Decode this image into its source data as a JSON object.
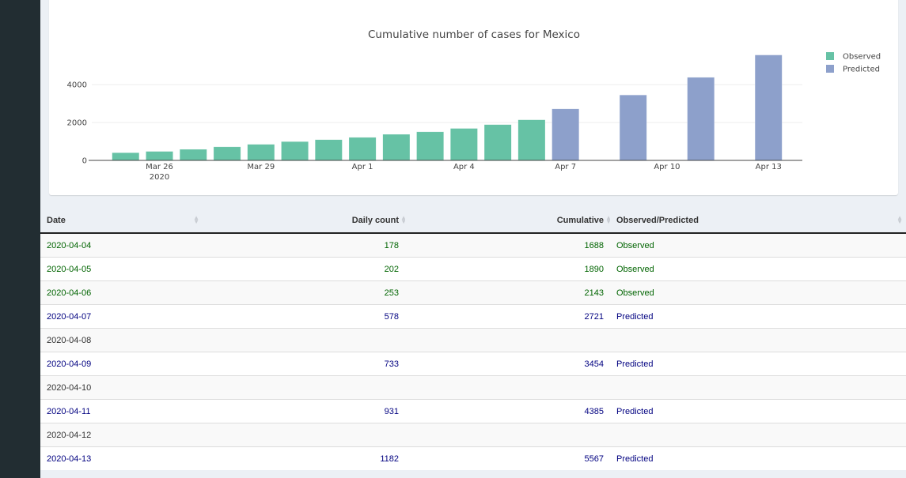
{
  "colors": {
    "observed": "#66c2a5",
    "predicted": "#8da0cb",
    "observed_text": "#006400",
    "predicted_text": "#000080",
    "sidebar": "#222d32"
  },
  "chart_data": {
    "type": "bar",
    "title": "Cumulative number of cases for Mexico",
    "xlabel": "",
    "ylabel": "",
    "ylim": [
      0,
      5800
    ],
    "grid": true,
    "legend_position": "top-right",
    "y_ticks": [
      "0",
      "2000",
      "4000"
    ],
    "x_ticks": [
      {
        "date": "2020-03-26",
        "label": "Mar 26",
        "sublabel": "2020"
      },
      {
        "date": "2020-03-29",
        "label": "Mar 29",
        "sublabel": ""
      },
      {
        "date": "2020-04-01",
        "label": "Apr 1",
        "sublabel": ""
      },
      {
        "date": "2020-04-04",
        "label": "Apr 4",
        "sublabel": ""
      },
      {
        "date": "2020-04-07",
        "label": "Apr 7",
        "sublabel": ""
      },
      {
        "date": "2020-04-10",
        "label": "Apr 10",
        "sublabel": ""
      },
      {
        "date": "2020-04-13",
        "label": "Apr 13",
        "sublabel": ""
      }
    ],
    "x_range": [
      "2020-03-24",
      "2020-04-14"
    ],
    "series": [
      {
        "name": "Observed",
        "x": [
          "2020-03-25",
          "2020-03-26",
          "2020-03-27",
          "2020-03-28",
          "2020-03-29",
          "2020-03-30",
          "2020-03-31",
          "2020-04-01",
          "2020-04-02",
          "2020-04-03",
          "2020-04-04",
          "2020-04-05",
          "2020-04-06"
        ],
        "values": [
          405,
          475,
          585,
          717,
          848,
          993,
          1094,
          1215,
          1378,
          1510,
          1688,
          1890,
          2143
        ]
      },
      {
        "name": "Predicted",
        "x": [
          "2020-04-07",
          "2020-04-09",
          "2020-04-11",
          "2020-04-13"
        ],
        "values": [
          2721,
          3454,
          4385,
          5567
        ]
      }
    ]
  },
  "table": {
    "columns": [
      {
        "label": "Date"
      },
      {
        "label": "Daily count"
      },
      {
        "label": "Cumulative"
      },
      {
        "label": "Observed/Predicted"
      }
    ],
    "rows": [
      {
        "date": "2020-04-04",
        "daily": "178",
        "cumulative": "1688",
        "type": "Observed",
        "cls": "obs"
      },
      {
        "date": "2020-04-05",
        "daily": "202",
        "cumulative": "1890",
        "type": "Observed",
        "cls": "obs"
      },
      {
        "date": "2020-04-06",
        "daily": "253",
        "cumulative": "2143",
        "type": "Observed",
        "cls": "obs"
      },
      {
        "date": "2020-04-07",
        "daily": "578",
        "cumulative": "2721",
        "type": "Predicted",
        "cls": "pred"
      },
      {
        "date": "2020-04-08",
        "daily": "",
        "cumulative": "",
        "type": "",
        "cls": "none"
      },
      {
        "date": "2020-04-09",
        "daily": "733",
        "cumulative": "3454",
        "type": "Predicted",
        "cls": "pred"
      },
      {
        "date": "2020-04-10",
        "daily": "",
        "cumulative": "",
        "type": "",
        "cls": "none"
      },
      {
        "date": "2020-04-11",
        "daily": "931",
        "cumulative": "4385",
        "type": "Predicted",
        "cls": "pred"
      },
      {
        "date": "2020-04-12",
        "daily": "",
        "cumulative": "",
        "type": "",
        "cls": "none"
      },
      {
        "date": "2020-04-13",
        "daily": "1182",
        "cumulative": "5567",
        "type": "Predicted",
        "cls": "pred"
      }
    ]
  }
}
